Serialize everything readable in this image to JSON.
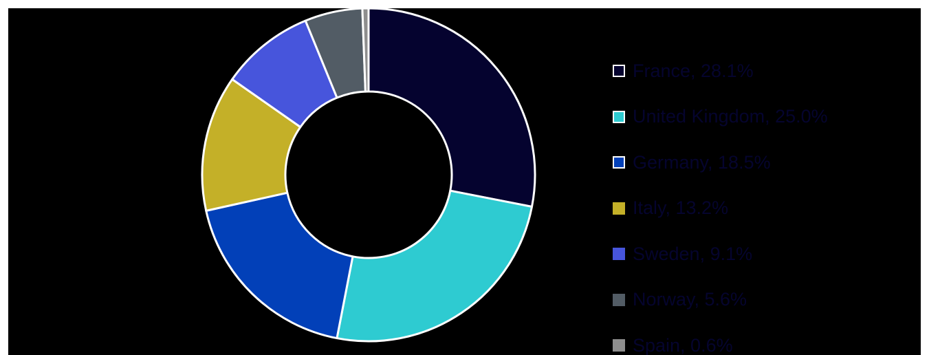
{
  "chart_data": {
    "type": "pie",
    "donut": true,
    "legend_position": "right",
    "slice_order": [
      "France",
      "United Kingdom",
      "Germany",
      "Italy",
      "Sweden",
      "Norway",
      "Spain"
    ],
    "series": [
      {
        "label": "France",
        "value": 28.1,
        "legend_text": "France, 28.1%",
        "color": "#05032f",
        "outlined_swatch": true
      },
      {
        "label": "United Kingdom",
        "value": 25.0,
        "legend_text": "United Kingdom, 25.0%",
        "color": "#2ecbd1",
        "outlined_swatch": true
      },
      {
        "label": "Germany",
        "value": 18.5,
        "legend_text": "Germany, 18.5%",
        "color": "#0240b8",
        "outlined_swatch": true
      },
      {
        "label": "Italy",
        "value": 13.2,
        "legend_text": "Italy, 13.2%",
        "color": "#c4b028",
        "outlined_swatch": false
      },
      {
        "label": "Sweden",
        "value": 9.1,
        "legend_text": "Sweden, 9.1%",
        "color": "#4755dc",
        "outlined_swatch": false
      },
      {
        "label": "Norway",
        "value": 5.6,
        "legend_text": "Norway, 5.6%",
        "color": "#525c65",
        "outlined_swatch": false
      },
      {
        "label": "Spain",
        "value": 0.6,
        "legend_text": "Spain, 0.6%",
        "color": "#8e8e8e",
        "outlined_swatch": false
      }
    ]
  }
}
